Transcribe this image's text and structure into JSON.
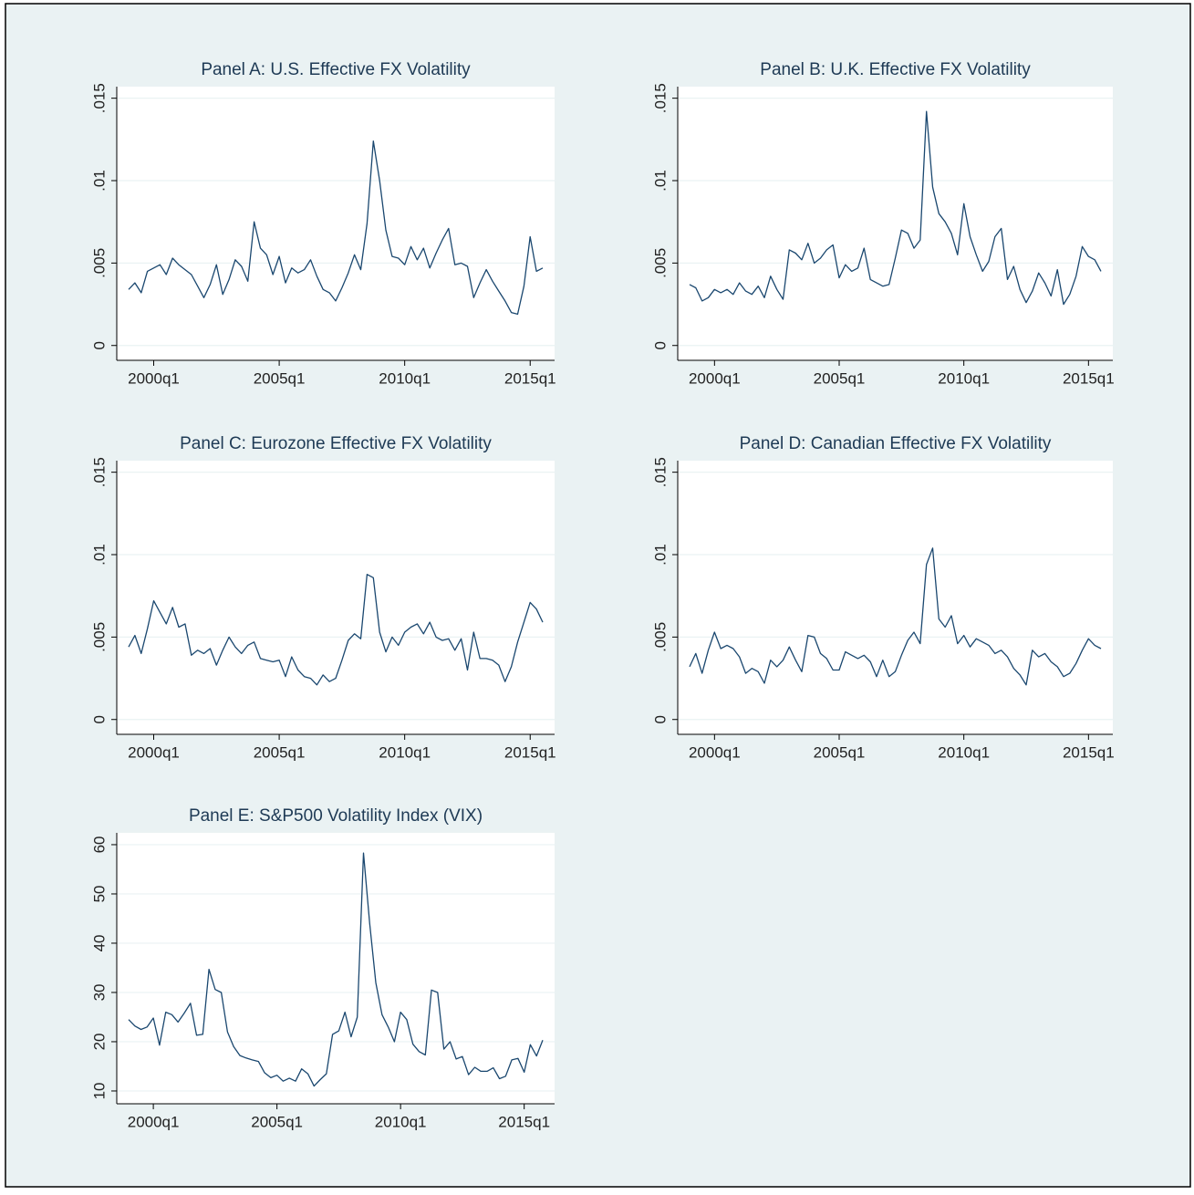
{
  "chart_data": [
    {
      "type": "line",
      "title": "Panel A: U.S. Effective FX Volatility",
      "color": "#1a476f",
      "grid": true,
      "x": [
        "1999q1",
        "1999q2",
        "1999q3",
        "1999q4",
        "2000q1",
        "2000q2",
        "2000q3",
        "2000q4",
        "2001q1",
        "2001q2",
        "2001q3",
        "2001q4",
        "2002q1",
        "2002q2",
        "2002q3",
        "2002q4",
        "2003q1",
        "2003q2",
        "2003q3",
        "2003q4",
        "2004q1",
        "2004q2",
        "2004q3",
        "2004q4",
        "2005q1",
        "2005q2",
        "2005q3",
        "2005q4",
        "2006q1",
        "2006q2",
        "2006q3",
        "2006q4",
        "2007q1",
        "2007q2",
        "2007q3",
        "2007q4",
        "2008q1",
        "2008q2",
        "2008q3",
        "2008q4",
        "2009q1",
        "2009q2",
        "2009q3",
        "2009q4",
        "2010q1",
        "2010q2",
        "2010q3",
        "2010q4",
        "2011q1",
        "2011q2",
        "2011q3",
        "2011q4",
        "2012q1",
        "2012q2",
        "2012q3",
        "2012q4",
        "2013q1",
        "2013q2",
        "2013q3",
        "2013q4",
        "2014q1",
        "2014q2",
        "2014q3",
        "2014q4",
        "2015q1",
        "2015q2",
        "2015q3"
      ],
      "values": [
        0.0034,
        0.0038,
        0.0032,
        0.0045,
        0.0047,
        0.0049,
        0.0043,
        0.0053,
        0.0049,
        0.0046,
        0.0043,
        0.0036,
        0.0029,
        0.0037,
        0.0049,
        0.0031,
        0.004,
        0.0052,
        0.0048,
        0.0039,
        0.0075,
        0.0059,
        0.0055,
        0.0043,
        0.0054,
        0.0038,
        0.0047,
        0.0044,
        0.0046,
        0.0052,
        0.0042,
        0.0034,
        0.0032,
        0.0027,
        0.0035,
        0.0044,
        0.0055,
        0.0046,
        0.0074,
        0.0124,
        0.01,
        0.007,
        0.0054,
        0.0053,
        0.0049,
        0.006,
        0.0052,
        0.0059,
        0.0047,
        0.0056,
        0.0064,
        0.0071,
        0.0049,
        0.005,
        0.0048,
        0.0029,
        0.0038,
        0.0046,
        0.0039,
        0.0033,
        0.0027,
        0.002,
        0.0019,
        0.0036,
        0.0066,
        0.0045,
        0.0047
      ],
      "ylim": [
        -0.0009,
        0.0157
      ],
      "yticks": [
        0,
        {
          "value": 0.005,
          "label": ".005"
        },
        {
          "value": 0.01,
          "label": ".01"
        },
        {
          "value": 0.015,
          "label": ".015"
        }
      ],
      "xticks": [
        "2000q1",
        "2005q1",
        "2010q1",
        "2015q1"
      ]
    },
    {
      "type": "line",
      "title": "Panel B: U.K. Effective FX Volatility",
      "color": "#1a476f",
      "grid": true,
      "x": [
        "1999q1",
        "1999q2",
        "1999q3",
        "1999q4",
        "2000q1",
        "2000q2",
        "2000q3",
        "2000q4",
        "2001q1",
        "2001q2",
        "2001q3",
        "2001q4",
        "2002q1",
        "2002q2",
        "2002q3",
        "2002q4",
        "2003q1",
        "2003q2",
        "2003q3",
        "2003q4",
        "2004q1",
        "2004q2",
        "2004q3",
        "2004q4",
        "2005q1",
        "2005q2",
        "2005q3",
        "2005q4",
        "2006q1",
        "2006q2",
        "2006q3",
        "2006q4",
        "2007q1",
        "2007q2",
        "2007q3",
        "2007q4",
        "2008q1",
        "2008q2",
        "2008q3",
        "2008q4",
        "2009q1",
        "2009q2",
        "2009q3",
        "2009q4",
        "2010q1",
        "2010q2",
        "2010q3",
        "2010q4",
        "2011q1",
        "2011q2",
        "2011q3",
        "2011q4",
        "2012q1",
        "2012q2",
        "2012q3",
        "2012q4",
        "2013q1",
        "2013q2",
        "2013q3",
        "2013q4",
        "2014q1",
        "2014q2",
        "2014q3",
        "2014q4",
        "2015q1",
        "2015q2",
        "2015q3"
      ],
      "values": [
        0.0037,
        0.0035,
        0.0027,
        0.0029,
        0.0034,
        0.0032,
        0.0034,
        0.0031,
        0.0038,
        0.0033,
        0.0031,
        0.0036,
        0.0029,
        0.0042,
        0.0034,
        0.0028,
        0.0058,
        0.0056,
        0.0052,
        0.0062,
        0.005,
        0.0053,
        0.0058,
        0.0061,
        0.0041,
        0.0049,
        0.0045,
        0.0047,
        0.0059,
        0.004,
        0.0038,
        0.0036,
        0.0037,
        0.0053,
        0.007,
        0.0068,
        0.0059,
        0.0064,
        0.0142,
        0.0096,
        0.008,
        0.0075,
        0.0068,
        0.0055,
        0.0086,
        0.0066,
        0.0055,
        0.0045,
        0.0051,
        0.0066,
        0.0071,
        0.004,
        0.0048,
        0.0034,
        0.0026,
        0.0033,
        0.0044,
        0.0038,
        0.003,
        0.0046,
        0.0025,
        0.0031,
        0.0042,
        0.006,
        0.0054,
        0.0052,
        0.0045
      ],
      "ylim": [
        -0.0009,
        0.0157
      ],
      "yticks": [
        0,
        {
          "value": 0.005,
          "label": ".005"
        },
        {
          "value": 0.01,
          "label": ".01"
        },
        {
          "value": 0.015,
          "label": ".015"
        }
      ],
      "xticks": [
        "2000q1",
        "2005q1",
        "2010q1",
        "2015q1"
      ]
    },
    {
      "type": "line",
      "title": "Panel C: Eurozone Effective FX Volatility",
      "color": "#1a476f",
      "grid": true,
      "x": [
        "1999q1",
        "1999q2",
        "1999q3",
        "1999q4",
        "2000q1",
        "2000q2",
        "2000q3",
        "2000q4",
        "2001q1",
        "2001q2",
        "2001q3",
        "2001q4",
        "2002q1",
        "2002q2",
        "2002q3",
        "2002q4",
        "2003q1",
        "2003q2",
        "2003q3",
        "2003q4",
        "2004q1",
        "2004q2",
        "2004q3",
        "2004q4",
        "2005q1",
        "2005q2",
        "2005q3",
        "2005q4",
        "2006q1",
        "2006q2",
        "2006q3",
        "2006q4",
        "2007q1",
        "2007q2",
        "2007q3",
        "2007q4",
        "2008q1",
        "2008q2",
        "2008q3",
        "2008q4",
        "2009q1",
        "2009q2",
        "2009q3",
        "2009q4",
        "2010q1",
        "2010q2",
        "2010q3",
        "2010q4",
        "2011q1",
        "2011q2",
        "2011q3",
        "2011q4",
        "2012q1",
        "2012q2",
        "2012q3",
        "2012q4",
        "2013q1",
        "2013q2",
        "2013q3",
        "2013q4",
        "2014q1",
        "2014q2",
        "2014q3",
        "2014q4",
        "2015q1",
        "2015q2",
        "2015q3"
      ],
      "values": [
        0.0044,
        0.0051,
        0.004,
        0.0055,
        0.0072,
        0.0065,
        0.0058,
        0.0068,
        0.0056,
        0.0058,
        0.0039,
        0.0042,
        0.004,
        0.0043,
        0.0033,
        0.0042,
        0.005,
        0.0044,
        0.004,
        0.0045,
        0.0047,
        0.0037,
        0.0036,
        0.0035,
        0.0036,
        0.0026,
        0.0038,
        0.003,
        0.0026,
        0.0025,
        0.0021,
        0.0027,
        0.0023,
        0.0025,
        0.0036,
        0.0048,
        0.0052,
        0.0049,
        0.0088,
        0.0086,
        0.0053,
        0.0041,
        0.005,
        0.0045,
        0.0053,
        0.0056,
        0.0058,
        0.0052,
        0.0059,
        0.005,
        0.0048,
        0.0049,
        0.0042,
        0.0049,
        0.003,
        0.0053,
        0.0037,
        0.0037,
        0.0036,
        0.0033,
        0.0023,
        0.0032,
        0.0047,
        0.0059,
        0.0071,
        0.0067,
        0.0059
      ],
      "ylim": [
        -0.0009,
        0.0157
      ],
      "yticks": [
        0,
        {
          "value": 0.005,
          "label": ".005"
        },
        {
          "value": 0.01,
          "label": ".01"
        },
        {
          "value": 0.015,
          "label": ".015"
        }
      ],
      "xticks": [
        "2000q1",
        "2005q1",
        "2010q1",
        "2015q1"
      ]
    },
    {
      "type": "line",
      "title": "Panel D: Canadian Effective FX Volatility",
      "color": "#1a476f",
      "grid": true,
      "x": [
        "1999q1",
        "1999q2",
        "1999q3",
        "1999q4",
        "2000q1",
        "2000q2",
        "2000q3",
        "2000q4",
        "2001q1",
        "2001q2",
        "2001q3",
        "2001q4",
        "2002q1",
        "2002q2",
        "2002q3",
        "2002q4",
        "2003q1",
        "2003q2",
        "2003q3",
        "2003q4",
        "2004q1",
        "2004q2",
        "2004q3",
        "2004q4",
        "2005q1",
        "2005q2",
        "2005q3",
        "2005q4",
        "2006q1",
        "2006q2",
        "2006q3",
        "2006q4",
        "2007q1",
        "2007q2",
        "2007q3",
        "2007q4",
        "2008q1",
        "2008q2",
        "2008q3",
        "2008q4",
        "2009q1",
        "2009q2",
        "2009q3",
        "2009q4",
        "2010q1",
        "2010q2",
        "2010q3",
        "2010q4",
        "2011q1",
        "2011q2",
        "2011q3",
        "2011q4",
        "2012q1",
        "2012q2",
        "2012q3",
        "2012q4",
        "2013q1",
        "2013q2",
        "2013q3",
        "2013q4",
        "2014q1",
        "2014q2",
        "2014q3",
        "2014q4",
        "2015q1",
        "2015q2",
        "2015q3"
      ],
      "values": [
        0.0032,
        0.004,
        0.0028,
        0.0042,
        0.0053,
        0.0043,
        0.0045,
        0.0043,
        0.0038,
        0.0028,
        0.0031,
        0.0029,
        0.0022,
        0.0036,
        0.0032,
        0.0036,
        0.0044,
        0.0036,
        0.0029,
        0.0051,
        0.005,
        0.004,
        0.0037,
        0.003,
        0.003,
        0.0041,
        0.0039,
        0.0037,
        0.0039,
        0.0035,
        0.0026,
        0.0036,
        0.0026,
        0.0029,
        0.0039,
        0.0048,
        0.0053,
        0.0046,
        0.0094,
        0.0104,
        0.0061,
        0.0056,
        0.0063,
        0.0046,
        0.0051,
        0.0044,
        0.0049,
        0.0047,
        0.0045,
        0.004,
        0.0042,
        0.0038,
        0.0031,
        0.0027,
        0.0021,
        0.0042,
        0.0038,
        0.004,
        0.0035,
        0.0032,
        0.0026,
        0.0028,
        0.0034,
        0.0042,
        0.0049,
        0.0045,
        0.0043
      ],
      "ylim": [
        -0.0009,
        0.0157
      ],
      "yticks": [
        0,
        {
          "value": 0.005,
          "label": ".005"
        },
        {
          "value": 0.01,
          "label": ".01"
        },
        {
          "value": 0.015,
          "label": ".015"
        }
      ],
      "xticks": [
        "2000q1",
        "2005q1",
        "2010q1",
        "2015q1"
      ]
    },
    {
      "type": "line",
      "title": "Panel E: S&P500 Volatility Index (VIX)",
      "color": "#1a476f",
      "grid": true,
      "x": [
        "1999q1",
        "1999q2",
        "1999q3",
        "1999q4",
        "2000q1",
        "2000q2",
        "2000q3",
        "2000q4",
        "2001q1",
        "2001q2",
        "2001q3",
        "2001q4",
        "2002q1",
        "2002q2",
        "2002q3",
        "2002q4",
        "2003q1",
        "2003q2",
        "2003q3",
        "2003q4",
        "2004q1",
        "2004q2",
        "2004q3",
        "2004q4",
        "2005q1",
        "2005q2",
        "2005q3",
        "2005q4",
        "2006q1",
        "2006q2",
        "2006q3",
        "2006q4",
        "2007q1",
        "2007q2",
        "2007q3",
        "2007q4",
        "2008q1",
        "2008q2",
        "2008q3",
        "2008q4",
        "2009q1",
        "2009q2",
        "2009q3",
        "2009q4",
        "2010q1",
        "2010q2",
        "2010q3",
        "2010q4",
        "2011q1",
        "2011q2",
        "2011q3",
        "2011q4",
        "2012q1",
        "2012q2",
        "2012q3",
        "2012q4",
        "2013q1",
        "2013q2",
        "2013q3",
        "2013q4",
        "2014q1",
        "2014q2",
        "2014q3",
        "2014q4",
        "2015q1",
        "2015q2",
        "2015q3",
        "2015q4"
      ],
      "values": [
        24.5,
        23.2,
        22.5,
        23.0,
        24.8,
        19.3,
        26.0,
        25.5,
        24.0,
        25.8,
        27.8,
        21.3,
        21.5,
        34.7,
        30.6,
        30.0,
        22.0,
        19.0,
        17.2,
        16.7,
        16.3,
        16.0,
        13.7,
        12.7,
        13.2,
        12.0,
        12.6,
        12.0,
        14.5,
        13.5,
        11.0,
        12.3,
        13.5,
        21.5,
        22.2,
        26.0,
        21.0,
        25.0,
        58.3,
        44.0,
        32.0,
        25.5,
        23.0,
        20.0,
        26.0,
        24.5,
        19.5,
        18.0,
        17.3,
        30.5,
        30.0,
        18.5,
        20.0,
        16.5,
        17.0,
        13.3,
        14.8,
        14.0,
        14.0,
        14.7,
        12.5,
        13.0,
        16.3,
        16.6,
        13.8,
        19.4,
        17.1,
        20.3
      ],
      "ylim": [
        7.4,
        62.4
      ],
      "yticks": [
        10,
        20,
        30,
        40,
        50,
        60
      ],
      "xticks": [
        "2000q1",
        "2005q1",
        "2010q1",
        "2015q1"
      ]
    }
  ]
}
